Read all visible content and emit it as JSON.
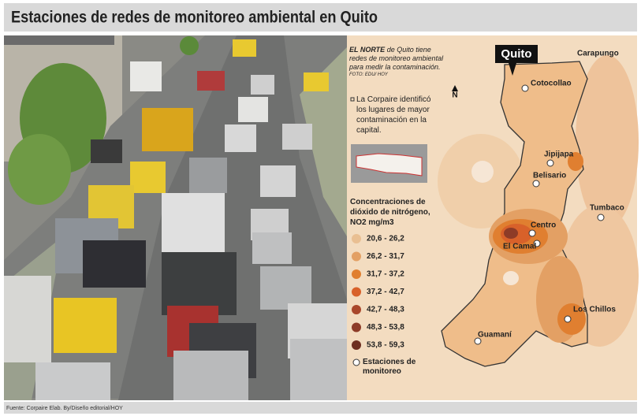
{
  "header": {
    "title": "Estaciones de redes de monitoreo ambiental en Quito"
  },
  "caption": {
    "lead": "EL NORTE",
    "text": "de Quito tiene redes de monitoreo ambiental para medir la contaminación.",
    "credit": "FOTO: EDU/ HOY"
  },
  "note": "La Corpaire identificó los lugares de mayor contaminación en la capital.",
  "legend": {
    "title": "Concentraciones de dióxido de nitrógeno, NO2 mg/m3",
    "items": [
      {
        "label": "20,6 - 26,2",
        "color": "#e9bf92"
      },
      {
        "label": "26,2 - 31,7",
        "color": "#e3a064"
      },
      {
        "label": "31,7 - 37,2",
        "color": "#e07f30"
      },
      {
        "label": "37,2 - 42,7",
        "color": "#d8612a"
      },
      {
        "label": "42,7 - 48,3",
        "color": "#a9472b"
      },
      {
        "label": "48,3 - 53,8",
        "color": "#8d3b27"
      },
      {
        "label": "53,8 - 59,3",
        "color": "#6e2f20"
      }
    ],
    "stations": "Estaciones de monitoreo"
  },
  "map": {
    "city": "Quito",
    "north": "N",
    "stations": [
      "Carapungo",
      "Cotocollao",
      "Jipijapa",
      "Belisario",
      "Tumbaco",
      "Centro",
      "El Camal",
      "Los Chillos",
      "Guamaní"
    ]
  },
  "footer": "Fuente: Corpaire Elab. By/Diseño editorial/HOY"
}
